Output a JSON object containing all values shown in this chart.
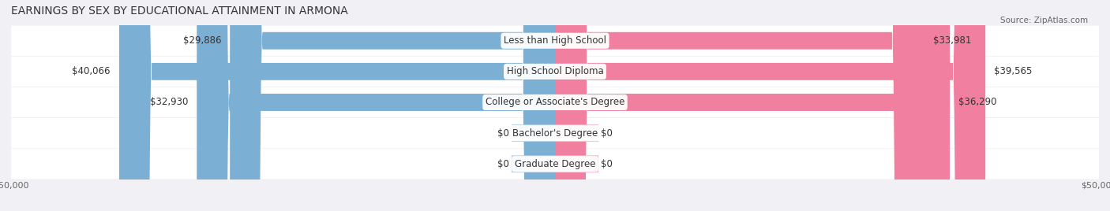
{
  "title": "EARNINGS BY SEX BY EDUCATIONAL ATTAINMENT IN ARMONA",
  "source": "Source: ZipAtlas.com",
  "categories": [
    "Less than High School",
    "High School Diploma",
    "College or Associate's Degree",
    "Bachelor's Degree",
    "Graduate Degree"
  ],
  "male_values": [
    29886,
    40066,
    32930,
    0,
    0
  ],
  "female_values": [
    33981,
    39565,
    36290,
    0,
    0
  ],
  "male_color": "#7bafd4",
  "female_color": "#f07fa0",
  "male_color_light": "#b8d0e8",
  "female_color_light": "#f7b8cc",
  "max_value": 50000,
  "bar_height": 0.55,
  "background_color": "#f0f0f5",
  "row_bg_color": "#ffffff",
  "title_fontsize": 10,
  "label_fontsize": 8.5,
  "axis_label_fontsize": 8,
  "legend_fontsize": 9
}
